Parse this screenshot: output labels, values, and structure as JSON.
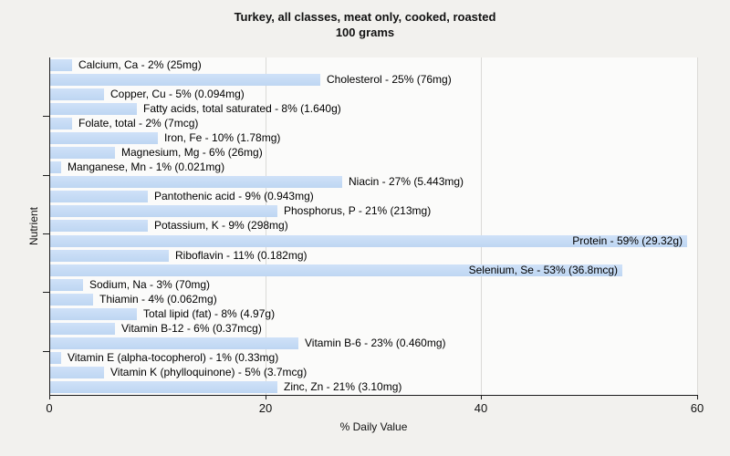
{
  "chart_data": {
    "type": "bar",
    "orientation": "horizontal",
    "title": "Turkey, all classes, meat only, cooked, roasted",
    "subtitle": "100 grams",
    "xlabel": "% Daily Value",
    "ylabel": "Nutrient",
    "xlim": [
      0,
      60
    ],
    "x_ticks": [
      0,
      20,
      40,
      60
    ],
    "grid": "vertical gridlines at x ticks",
    "legend": "none",
    "label_format": "{name} - {pct}% ({amount})",
    "bars": [
      {
        "name": "Calcium, Ca",
        "pct": 2,
        "amount": "25mg"
      },
      {
        "name": "Cholesterol",
        "pct": 25,
        "amount": "76mg"
      },
      {
        "name": "Copper, Cu",
        "pct": 5,
        "amount": "0.094mg"
      },
      {
        "name": "Fatty acids, total saturated",
        "pct": 8,
        "amount": "1.640g"
      },
      {
        "name": "Folate, total",
        "pct": 2,
        "amount": "7mcg"
      },
      {
        "name": "Iron, Fe",
        "pct": 10,
        "amount": "1.78mg"
      },
      {
        "name": "Magnesium, Mg",
        "pct": 6,
        "amount": "26mg"
      },
      {
        "name": "Manganese, Mn",
        "pct": 1,
        "amount": "0.021mg"
      },
      {
        "name": "Niacin",
        "pct": 27,
        "amount": "5.443mg"
      },
      {
        "name": "Pantothenic acid",
        "pct": 9,
        "amount": "0.943mg"
      },
      {
        "name": "Phosphorus, P",
        "pct": 21,
        "amount": "213mg"
      },
      {
        "name": "Potassium, K",
        "pct": 9,
        "amount": "298mg"
      },
      {
        "name": "Protein",
        "pct": 59,
        "amount": "29.32g"
      },
      {
        "name": "Riboflavin",
        "pct": 11,
        "amount": "0.182mg"
      },
      {
        "name": "Selenium, Se",
        "pct": 53,
        "amount": "36.8mcg"
      },
      {
        "name": "Sodium, Na",
        "pct": 3,
        "amount": "70mg"
      },
      {
        "name": "Thiamin",
        "pct": 4,
        "amount": "0.062mg"
      },
      {
        "name": "Total lipid (fat)",
        "pct": 8,
        "amount": "4.97g"
      },
      {
        "name": "Vitamin B-12",
        "pct": 6,
        "amount": "0.37mcg"
      },
      {
        "name": "Vitamin B-6",
        "pct": 23,
        "amount": "0.460mg"
      },
      {
        "name": "Vitamin E (alpha-tocopherol)",
        "pct": 1,
        "amount": "0.33mg"
      },
      {
        "name": "Vitamin K (phylloquinone)",
        "pct": 5,
        "amount": "3.7mcg"
      },
      {
        "name": "Zinc, Zn",
        "pct": 21,
        "amount": "3.10mg"
      }
    ],
    "colors": {
      "bar_fill": "#c4daf5",
      "plot_bg": "#fbfbfa",
      "page_bg": "#f2f1ee",
      "gridline": "#dbdad7",
      "axis": "#1c1c1c",
      "text": "#000000"
    }
  }
}
